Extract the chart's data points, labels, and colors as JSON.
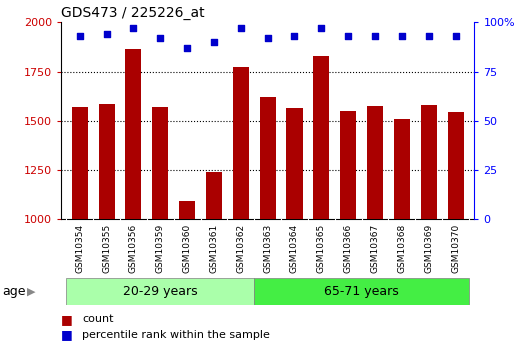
{
  "title": "GDS473 / 225226_at",
  "samples": [
    "GSM10354",
    "GSM10355",
    "GSM10356",
    "GSM10359",
    "GSM10360",
    "GSM10361",
    "GSM10362",
    "GSM10363",
    "GSM10364",
    "GSM10365",
    "GSM10366",
    "GSM10367",
    "GSM10368",
    "GSM10369",
    "GSM10370"
  ],
  "counts": [
    1570,
    1585,
    1865,
    1568,
    1090,
    1240,
    1775,
    1620,
    1565,
    1830,
    1548,
    1575,
    1510,
    1580,
    1545
  ],
  "percentile_ranks": [
    93,
    94,
    97,
    92,
    87,
    90,
    97,
    92,
    93,
    97,
    93,
    93,
    93,
    93,
    93
  ],
  "groups": [
    {
      "label": "20-29 years",
      "start": 0,
      "end": 7,
      "color": "#aaffaa"
    },
    {
      "label": "65-71 years",
      "start": 7,
      "end": 15,
      "color": "#44ee44"
    }
  ],
  "bar_color": "#AA0000",
  "dot_color": "#0000CC",
  "ylim_left": [
    1000,
    2000
  ],
  "ylim_right": [
    0,
    100
  ],
  "yticks_left": [
    1000,
    1250,
    1500,
    1750,
    2000
  ],
  "yticks_right": [
    0,
    25,
    50,
    75,
    100
  ],
  "ytick_labels_right": [
    "0",
    "25",
    "50",
    "75",
    "100%"
  ],
  "grid_values": [
    1250,
    1500,
    1750
  ],
  "background_color": "#ffffff",
  "tick_bg_color": "#cccccc",
  "bar_width": 0.6,
  "age_label": "age",
  "legend_count": "count",
  "legend_pct": "percentile rank within the sample"
}
